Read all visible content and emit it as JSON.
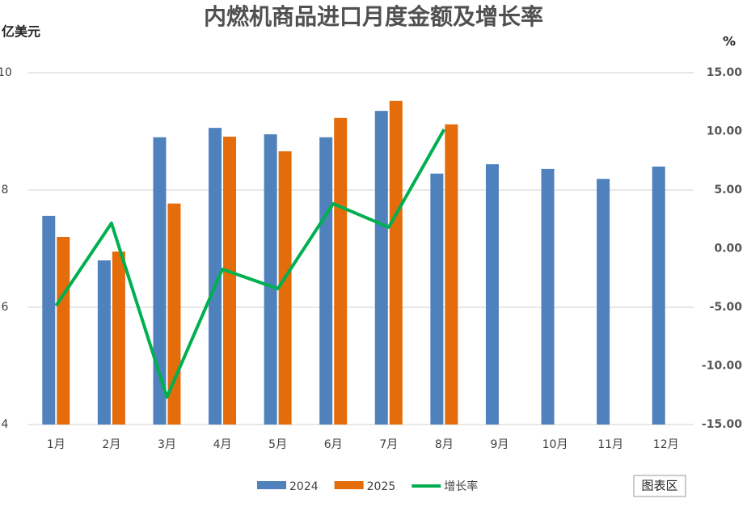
{
  "chart_data": {
    "type": "bar_line",
    "title": "内燃机商品进口月度金额及增长率",
    "y_label": "亿美元",
    "y2_label": "%",
    "categories": [
      "1月",
      "2月",
      "3月",
      "4月",
      "5月",
      "6月",
      "7月",
      "8月",
      "9月",
      "10月",
      "11月",
      "12月"
    ],
    "series": [
      {
        "name": "2024",
        "color": "#4f81bd",
        "type": "bar",
        "values": [
          7.56,
          6.8,
          8.9,
          9.06,
          8.95,
          8.9,
          9.35,
          8.28,
          8.44,
          8.36,
          8.19,
          8.4
        ]
      },
      {
        "name": "2025",
        "color": "#e46c0a",
        "type": "bar",
        "values": [
          7.2,
          6.95,
          7.77,
          8.91,
          8.66,
          9.23,
          9.52,
          9.12,
          null,
          null,
          null,
          null
        ]
      },
      {
        "name": "增长率",
        "color": "#00b050",
        "type": "line",
        "axis": "y2",
        "values": [
          -4.86,
          2.17,
          -12.66,
          -1.76,
          -3.41,
          3.83,
          1.83,
          10.17,
          null,
          null,
          null,
          null
        ]
      }
    ],
    "ylim": [
      4,
      10
    ],
    "yticks": [
      4,
      6,
      8,
      10
    ],
    "y2lim": [
      -15,
      15
    ],
    "y2ticks": [
      {
        "value": -15,
        "label": "-15.00"
      },
      {
        "value": -10,
        "label": "-10.00"
      },
      {
        "value": -5,
        "label": "-5.00"
      },
      {
        "value": 0,
        "label": "0.00"
      },
      {
        "value": 5,
        "label": "5.00"
      },
      {
        "value": 10,
        "label": "10.00"
      },
      {
        "value": 15,
        "label": "15.00"
      }
    ],
    "grid": true,
    "legend": "bottom",
    "tooltip": "图表区"
  }
}
